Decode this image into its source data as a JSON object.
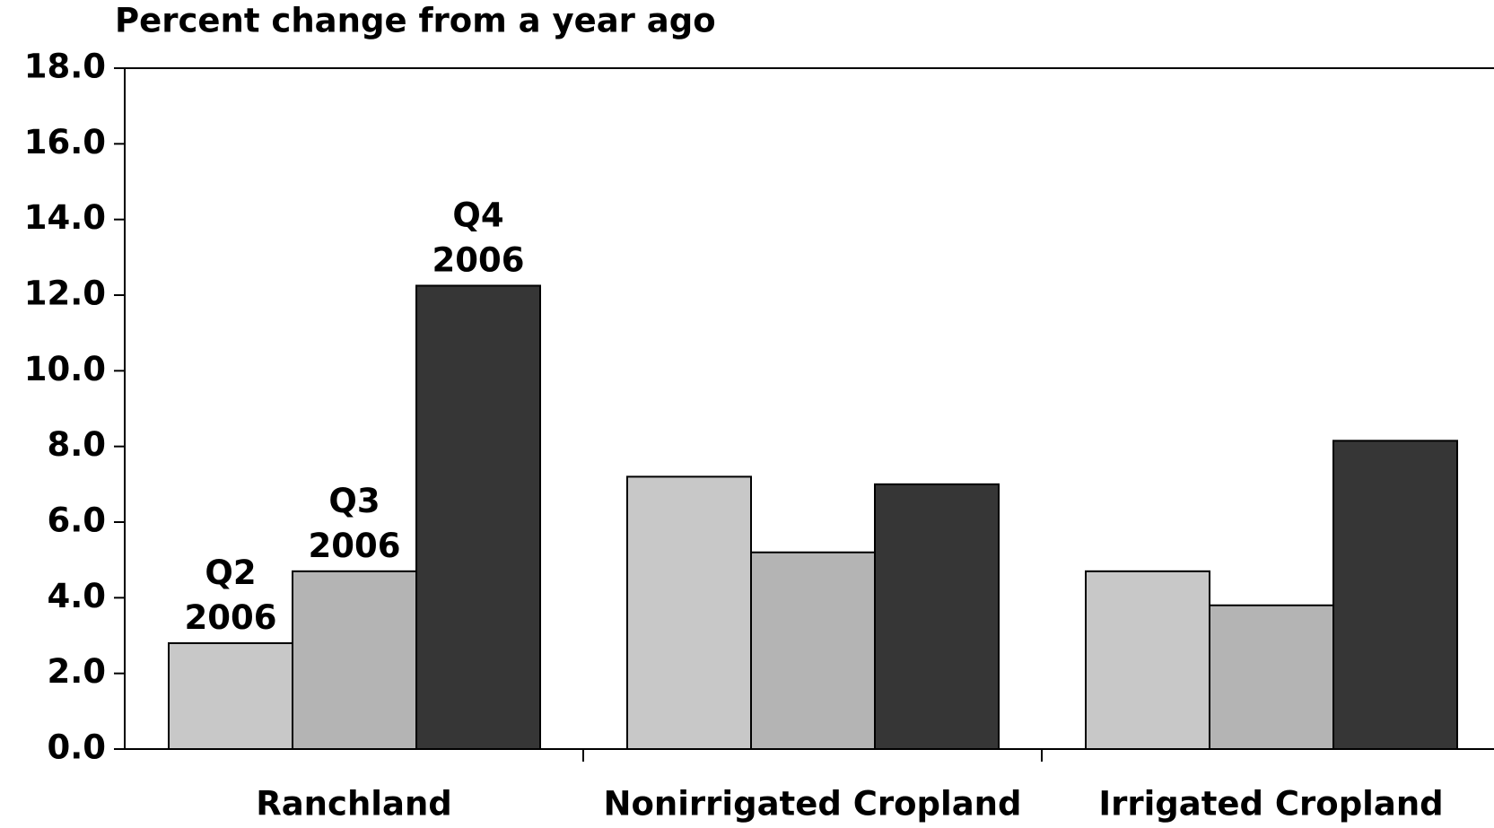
{
  "chart_data": {
    "type": "bar",
    "title": "Percent change from a year ago",
    "categories": [
      "Ranchland",
      "Nonirrigated Cropland",
      "Irrigated Cropland"
    ],
    "series": [
      {
        "name": "Q2 2006",
        "color": "#c8c8c8",
        "values": [
          2.8,
          7.2,
          4.7
        ]
      },
      {
        "name": "Q3 2006",
        "color": "#b4b4b4",
        "values": [
          4.7,
          5.2,
          3.8
        ]
      },
      {
        "name": "Q4 2006",
        "color": "#363636",
        "values": [
          12.25,
          7.0,
          8.15
        ]
      }
    ],
    "ylim": [
      0,
      18
    ],
    "yticks": [
      {
        "value": 0,
        "label": "0.0"
      },
      {
        "value": 2,
        "label": "2.0"
      },
      {
        "value": 4,
        "label": "4.0"
      },
      {
        "value": 6,
        "label": "6.0"
      },
      {
        "value": 8,
        "label": "8.0"
      },
      {
        "value": 10,
        "label": "10.0"
      },
      {
        "value": 12,
        "label": "12.0"
      },
      {
        "value": 14,
        "label": "14.0"
      },
      {
        "value": 16,
        "label": "16.0"
      },
      {
        "value": 18,
        "label": "18.0"
      }
    ],
    "grid": false
  }
}
